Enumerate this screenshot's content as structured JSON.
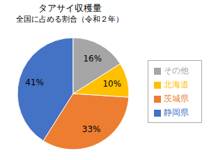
{
  "chart_data": {
    "type": "pie",
    "title": "タアサイ収穫量",
    "subtitle": "全国に占める割合（令和２年）",
    "categories": [
      "静岡県",
      "茨城県",
      "北海道",
      "その他"
    ],
    "values": [
      41,
      33,
      10,
      16
    ],
    "value_labels": [
      "41%",
      "33%",
      "10%",
      "16%"
    ],
    "colors": [
      "#4472C4",
      "#ED7D31",
      "#FFC000",
      "#A5A5A5"
    ],
    "data_labels": true,
    "legend": "right"
  }
}
